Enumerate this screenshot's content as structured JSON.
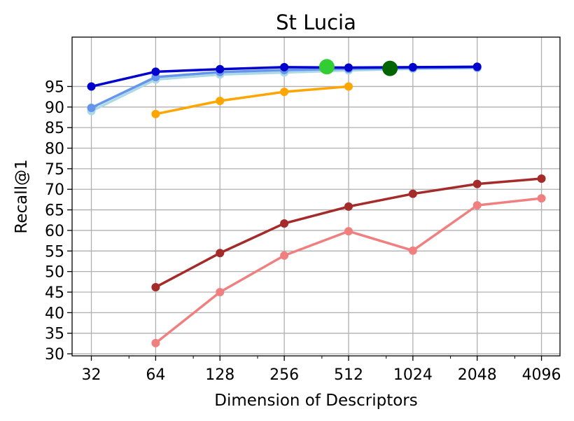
{
  "chart_data": {
    "type": "line",
    "title": "St Lucia",
    "xlabel": "Dimension of Descriptors",
    "ylabel": "Recall@1",
    "x_scale": "log2",
    "xlim": [
      26,
      5000
    ],
    "ylim": [
      29.5,
      107
    ],
    "x_ticks": [
      32,
      64,
      128,
      256,
      512,
      1024,
      2048,
      4096
    ],
    "y_ticks": [
      30,
      35,
      40,
      45,
      50,
      55,
      60,
      65,
      70,
      75,
      80,
      85,
      90,
      95
    ],
    "grid": true,
    "series": [
      {
        "color": "#0000cd",
        "x": [
          32,
          64,
          128,
          256,
          512,
          1024,
          2048
        ],
        "y": [
          95.0,
          98.6,
          99.2,
          99.7,
          99.6,
          99.7,
          99.8
        ]
      },
      {
        "color": "#6495ed",
        "x": [
          32,
          64,
          128,
          256,
          512,
          1024,
          2048
        ],
        "y": [
          89.8,
          97.3,
          98.5,
          99.0,
          99.3,
          99.5,
          99.6
        ]
      },
      {
        "color": "#add8e6",
        "x": [
          32,
          64,
          128,
          256,
          512,
          1024,
          2048
        ],
        "y": [
          89.0,
          96.7,
          97.9,
          98.4,
          98.9,
          99.3,
          99.5
        ]
      },
      {
        "color": "#ffa500",
        "x": [
          64,
          128,
          256,
          512
        ],
        "y": [
          88.3,
          91.5,
          93.7,
          95.0
        ]
      },
      {
        "color": "#a52a2a",
        "x": [
          64,
          128,
          256,
          512,
          1024,
          2048,
          4096
        ],
        "y": [
          46.2,
          54.5,
          61.7,
          65.8,
          68.9,
          71.3,
          72.6
        ]
      },
      {
        "color": "#f08080",
        "x": [
          64,
          128,
          256,
          512,
          1024,
          2048,
          4096
        ],
        "y": [
          32.6,
          45.0,
          53.9,
          59.8,
          55.1,
          66.1,
          67.8
        ]
      }
    ],
    "highlight_points": [
      {
        "color": "#32cd32",
        "x": 405,
        "y": 99.8
      },
      {
        "color": "#006400",
        "x": 800,
        "y": 99.4
      }
    ]
  }
}
